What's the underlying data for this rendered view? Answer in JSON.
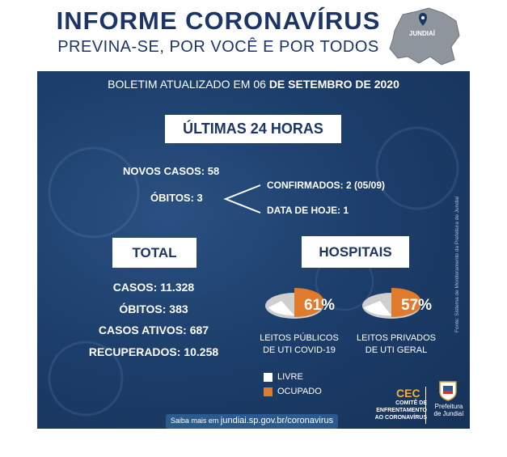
{
  "header": {
    "title": "INFORME CORONAVÍRUS",
    "subtitle": "PREVINA-SE, POR VOCÊ E POR TODOS",
    "map_label": "JUNDIAÍ"
  },
  "bulletin": {
    "prefix": "BOLETIM  ATUALIZADO EM 06",
    "date_bold": "DE SETEMBRO DE 2020"
  },
  "last24": {
    "heading": "ÚLTIMAS 24 HORAS",
    "new_cases": "NOVOS CASOS: 58",
    "deaths": "ÓBITOS: 3",
    "confirmed": "CONFIRMADOS: 2 (05/09)",
    "today": "DATA DE HOJE: 1"
  },
  "total": {
    "heading": "TOTAL",
    "cases": "CASOS: 11.328",
    "deaths": "ÓBITOS: 383",
    "active": "CASOS ATIVOS: 687",
    "recovered": "RECUPERADOS: 10.258"
  },
  "hospitals": {
    "heading": "HOSPITAIS",
    "public": {
      "percent_label": "61%",
      "occupied_fraction": 0.61,
      "line1": "LEITOS PÚBLICOS",
      "line2": "DE UTI COVID-19"
    },
    "private": {
      "percent_label": "57%",
      "occupied_fraction": 0.57,
      "line1": "LEITOS PRIVADOS",
      "line2": "DE UTI GERAL"
    }
  },
  "legend": {
    "free": {
      "label": "LIVRE",
      "color": "#ffffff"
    },
    "occupied": {
      "label": "OCUPADO",
      "color": "#e07b2e"
    }
  },
  "source": "Fonte: Sistema de Monitoramento da Prefeitura de Jundiaí",
  "footer": {
    "prefix": "Saiba mais em",
    "link": "jundiai.sp.gov.br/coronavirus"
  },
  "cec": {
    "logo": "CEC",
    "line1": "COMITÊ DE",
    "line2": "ENFRENTAMENTO",
    "line3": "AO CORONAVÍRUS"
  },
  "prefeitura": {
    "line1": "Prefeitura",
    "line2": "de Jundiaí"
  }
}
